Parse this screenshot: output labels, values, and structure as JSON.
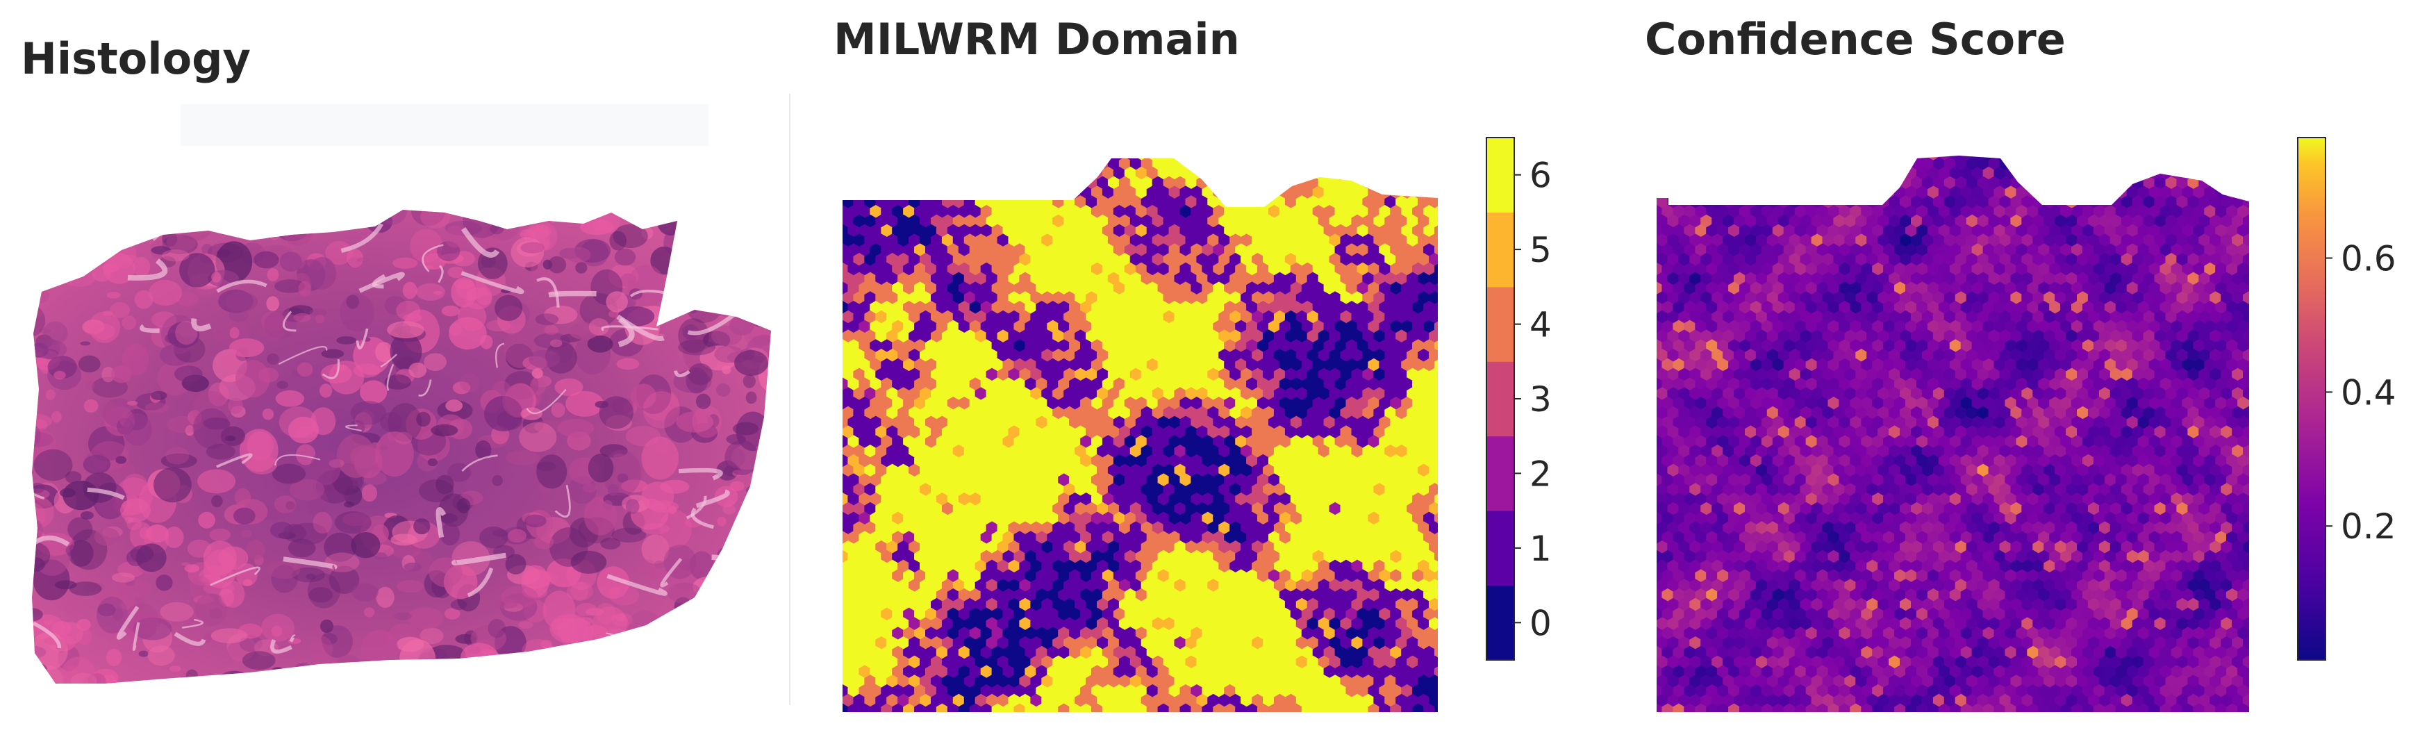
{
  "panels": {
    "histology": {
      "title": "Histology"
    },
    "domain": {
      "title": "MILWRM Domain"
    },
    "confidence": {
      "title": "Confidence Score"
    }
  },
  "chart_data": [
    {
      "type": "image",
      "title": "Histology",
      "description_colors": {
        "tissue_pink": "#e04b9b",
        "tissue_purple": "#8a2f7f",
        "background": "#ffffff"
      }
    },
    {
      "type": "heatmap",
      "title": "MILWRM Domain",
      "colormap": "plasma (discrete, 7 levels)",
      "colorbar": {
        "ticks": [
          0,
          1,
          2,
          3,
          4,
          5,
          6
        ],
        "tick_labels": [
          "0",
          "1",
          "2",
          "3",
          "4",
          "5",
          "6"
        ],
        "colors": [
          "#0d0887",
          "#5c01a6",
          "#9c179e",
          "#cc4778",
          "#ed7953",
          "#fdb42f",
          "#f0f921"
        ],
        "range": [
          -0.5,
          6.5
        ]
      },
      "dominant_domain": 6,
      "domains_present": [
        0,
        1,
        2,
        3,
        4,
        5,
        6
      ],
      "grid": false
    },
    {
      "type": "heatmap",
      "title": "Confidence Score",
      "colormap": "plasma (continuous)",
      "colorbar": {
        "ticks": [
          0.2,
          0.4,
          0.6
        ],
        "tick_labels": [
          "0.2",
          "0.4",
          "0.6"
        ],
        "range": [
          0.0,
          0.78
        ]
      },
      "typical_values": [
        0.05,
        0.35
      ],
      "grid": false
    }
  ],
  "colorbars": {
    "domain_ticks": [
      "0",
      "1",
      "2",
      "3",
      "4",
      "5",
      "6"
    ],
    "confidence_ticks": [
      "0.2",
      "0.4",
      "0.6"
    ]
  }
}
